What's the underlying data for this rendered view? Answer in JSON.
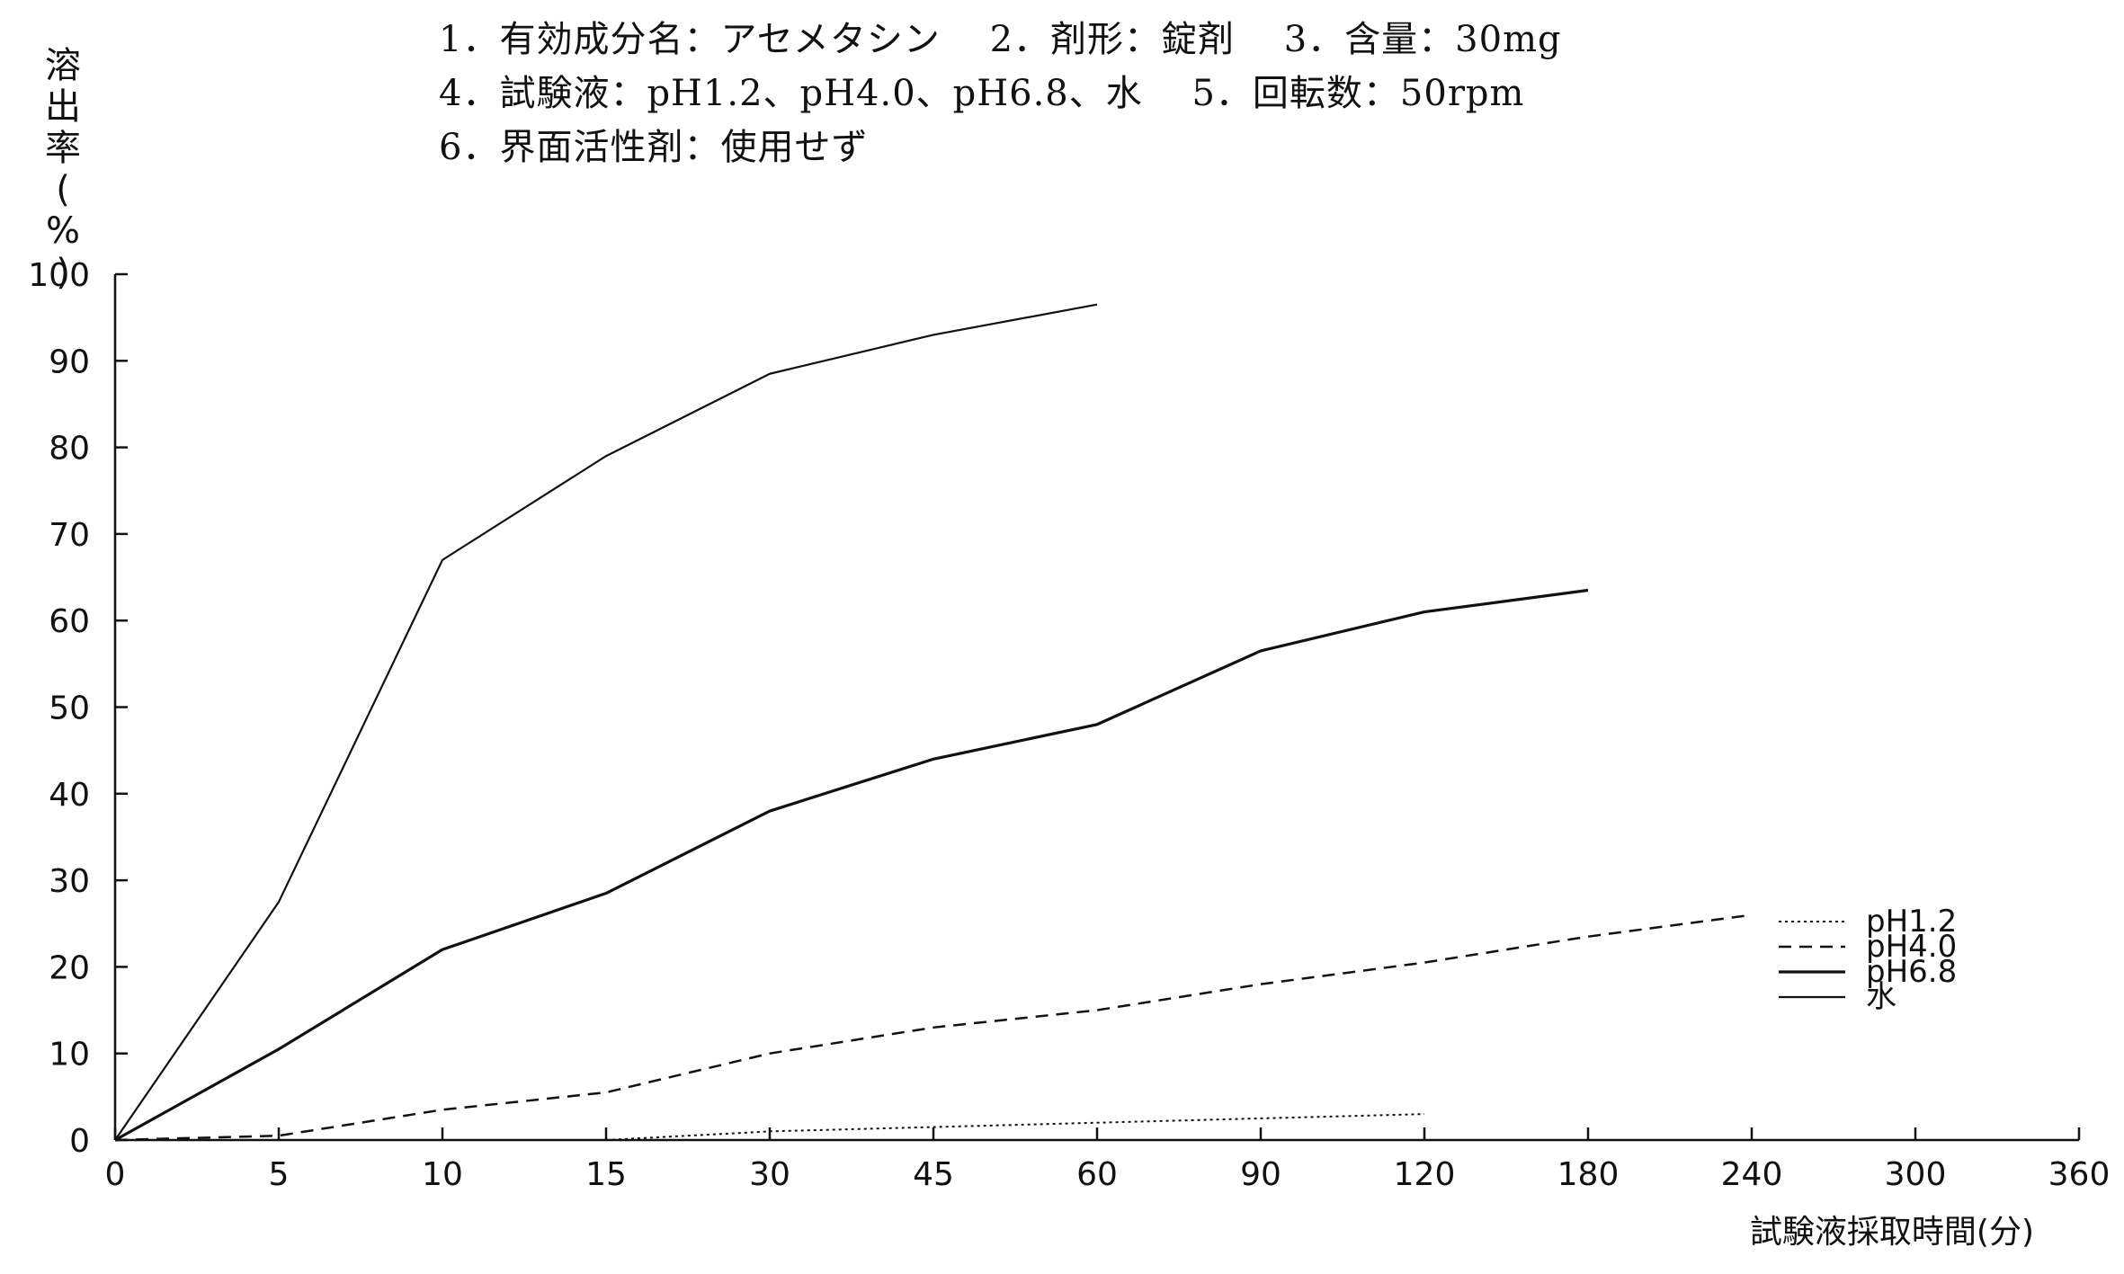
{
  "header": {
    "line1": "1．有効成分名：アセメタシン　 2．剤形：錠剤　 3．含量：30mg",
    "line2": "4．試験液：pH1.2、pH4.0、pH6.8、水　 5．回転数：50rpm",
    "line3": "6．界面活性剤：使用せず"
  },
  "chart_data": {
    "type": "line",
    "ylabel": "溶出率(%)",
    "xlabel": "試験液採取時間(分)",
    "categories": [
      "0",
      "5",
      "10",
      "15",
      "30",
      "45",
      "60",
      "90",
      "120",
      "180",
      "240",
      "300",
      "360"
    ],
    "ylim": [
      0,
      100
    ],
    "yticks": [
      0,
      10,
      20,
      30,
      40,
      50,
      60,
      70,
      80,
      90,
      100
    ],
    "legend_position": "bottom-right",
    "series": [
      {
        "name": "pH1.2",
        "style": "dotted",
        "values": [
          0,
          0,
          0,
          0,
          1,
          1.5,
          2,
          2.5,
          3,
          null,
          null,
          null,
          null
        ]
      },
      {
        "name": "pH4.0",
        "style": "dashed",
        "values": [
          0,
          0.5,
          3.5,
          5.5,
          10,
          13,
          15,
          18,
          20.5,
          23.5,
          26,
          null,
          null
        ]
      },
      {
        "name": "pH6.8",
        "style": "solid-thick",
        "values": [
          0,
          10.5,
          22,
          28.5,
          38,
          44,
          48,
          56.5,
          61,
          63.5,
          null,
          null,
          null
        ]
      },
      {
        "name": "水",
        "style": "solid-thin",
        "values": [
          0,
          27.5,
          67,
          79,
          88.5,
          93,
          96.5,
          null,
          null,
          null,
          null,
          null,
          null
        ]
      }
    ]
  }
}
